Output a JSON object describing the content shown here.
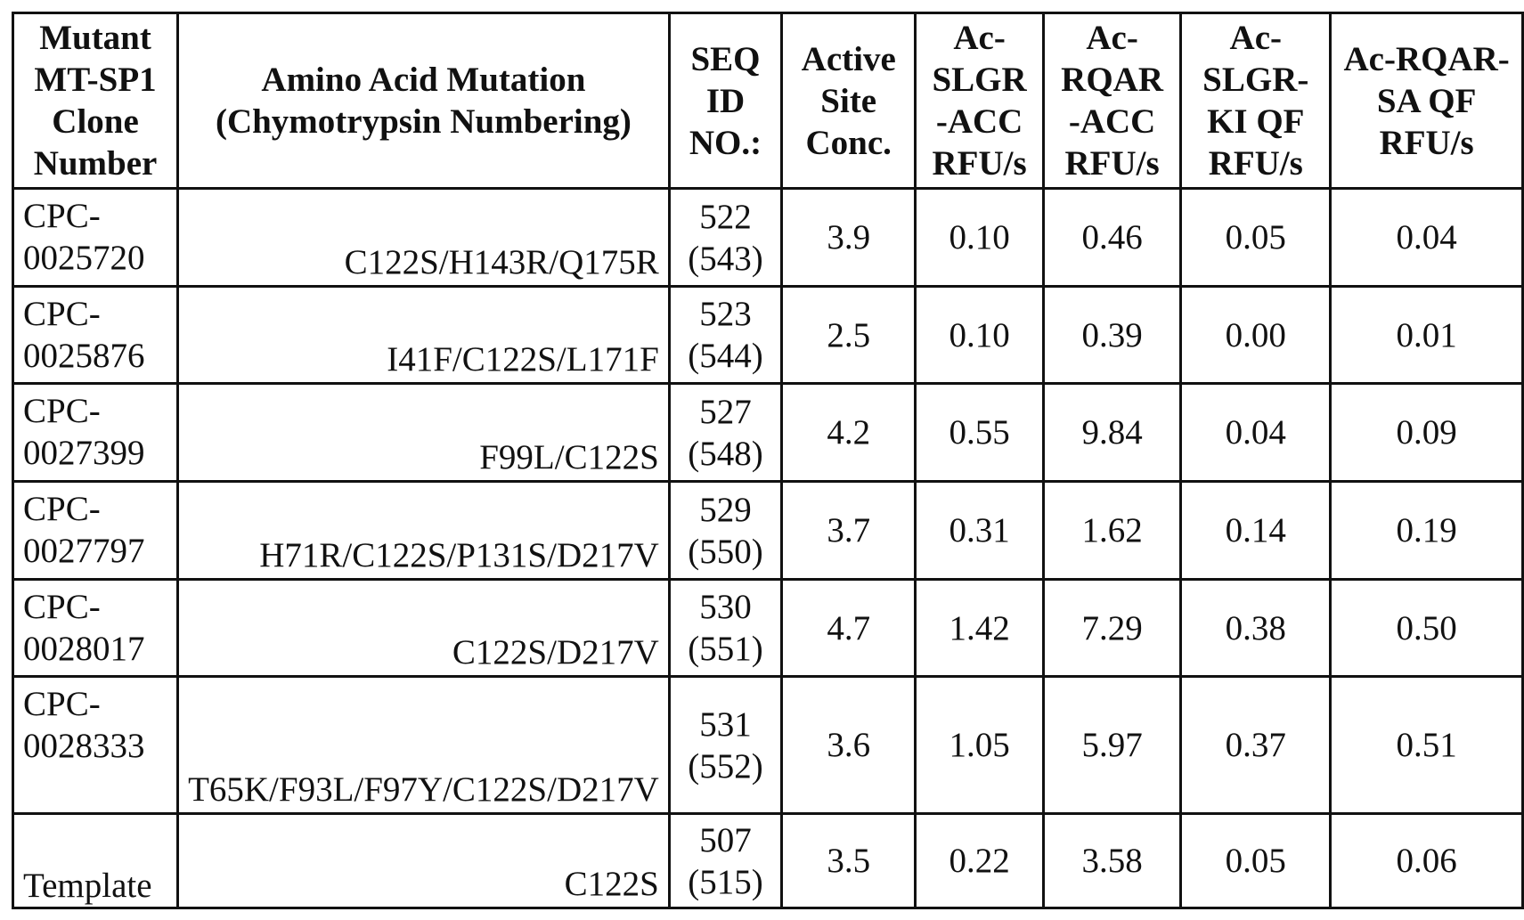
{
  "table": {
    "headers": [
      "Mutant MT-SP1 Clone Number",
      "Amino Acid Mutation (Chymotrypsin Numbering)",
      "SEQ ID NO.:",
      "Active Site Conc.",
      "Ac-SLGR -ACC RFU/s",
      "Ac-RQAR -ACC RFU/s",
      "Ac-SLGR-KI QF RFU/s",
      "Ac-RQAR-SA QF RFU/s"
    ],
    "rows": [
      {
        "clone": "CPC-0025720",
        "mutation": "C122S/H143R/Q175R",
        "seq": "522 (543)",
        "conc": "3.9",
        "slgr_acc": "0.10",
        "rqar_acc": "0.46",
        "slgr_ki_qf": "0.05",
        "rqar_sa_qf": "0.04"
      },
      {
        "clone": "CPC-0025876",
        "mutation": "I41F/C122S/L171F",
        "seq": "523 (544)",
        "conc": "2.5",
        "slgr_acc": "0.10",
        "rqar_acc": "0.39",
        "slgr_ki_qf": "0.00",
        "rqar_sa_qf": "0.01"
      },
      {
        "clone": "CPC-0027399",
        "mutation": "F99L/C122S",
        "seq": "527 (548)",
        "conc": "4.2",
        "slgr_acc": "0.55",
        "rqar_acc": "9.84",
        "slgr_ki_qf": "0.04",
        "rqar_sa_qf": "0.09"
      },
      {
        "clone": "CPC-0027797",
        "mutation": "H71R/C122S/P131S/D217V",
        "seq": "529 (550)",
        "conc": "3.7",
        "slgr_acc": "0.31",
        "rqar_acc": "1.62",
        "slgr_ki_qf": "0.14",
        "rqar_sa_qf": "0.19"
      },
      {
        "clone": "CPC-0028017",
        "mutation": "C122S/D217V",
        "seq": "530 (551)",
        "conc": "4.7",
        "slgr_acc": "1.42",
        "rqar_acc": "7.29",
        "slgr_ki_qf": "0.38",
        "rqar_sa_qf": "0.50"
      },
      {
        "clone": "CPC-0028333",
        "mutation": "T65K/F93L/F97Y/C122S/D217V",
        "seq": "531 (552)",
        "conc": "3.6",
        "slgr_acc": "1.05",
        "rqar_acc": "5.97",
        "slgr_ki_qf": "0.37",
        "rqar_sa_qf": "0.51"
      },
      {
        "clone": "Template",
        "mutation": "C122S",
        "seq": "507 (515)",
        "conc": "3.5",
        "slgr_acc": "0.22",
        "rqar_acc": "3.58",
        "slgr_ki_qf": "0.05",
        "rqar_sa_qf": "0.06"
      }
    ]
  }
}
